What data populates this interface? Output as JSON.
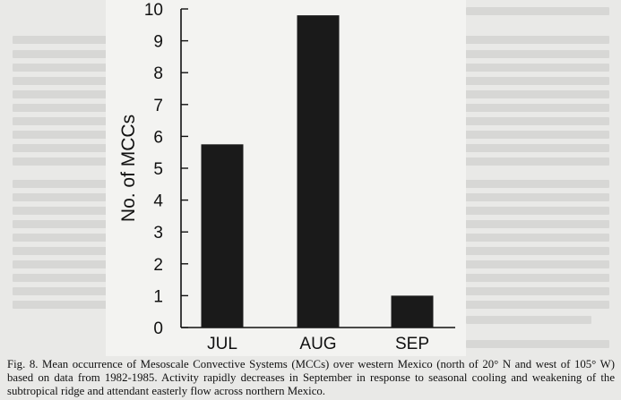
{
  "chart_data": {
    "type": "bar",
    "categories": [
      "JUL",
      "AUG",
      "SEP"
    ],
    "values": [
      5.75,
      9.8,
      1.0
    ],
    "title": "",
    "xlabel": "",
    "ylabel": "No. of MCCs",
    "ylim": [
      0,
      10
    ],
    "yticks": [
      0,
      1,
      2,
      3,
      4,
      5,
      6,
      7,
      8,
      9,
      10
    ],
    "grid": false,
    "bar_color": "#1a1a1a"
  },
  "caption": {
    "label": "Fig. 8.",
    "text": "Mean occurrence of Mesoscale Convective Systems (MCCs) over western Mexico (north of 20° N and west of 105° W) based on data from 1982-1985. Activity rapidly decreases in September in response to seasonal cooling and weakening of the subtropical ridge and attendant easterly flow across northern Mexico."
  }
}
